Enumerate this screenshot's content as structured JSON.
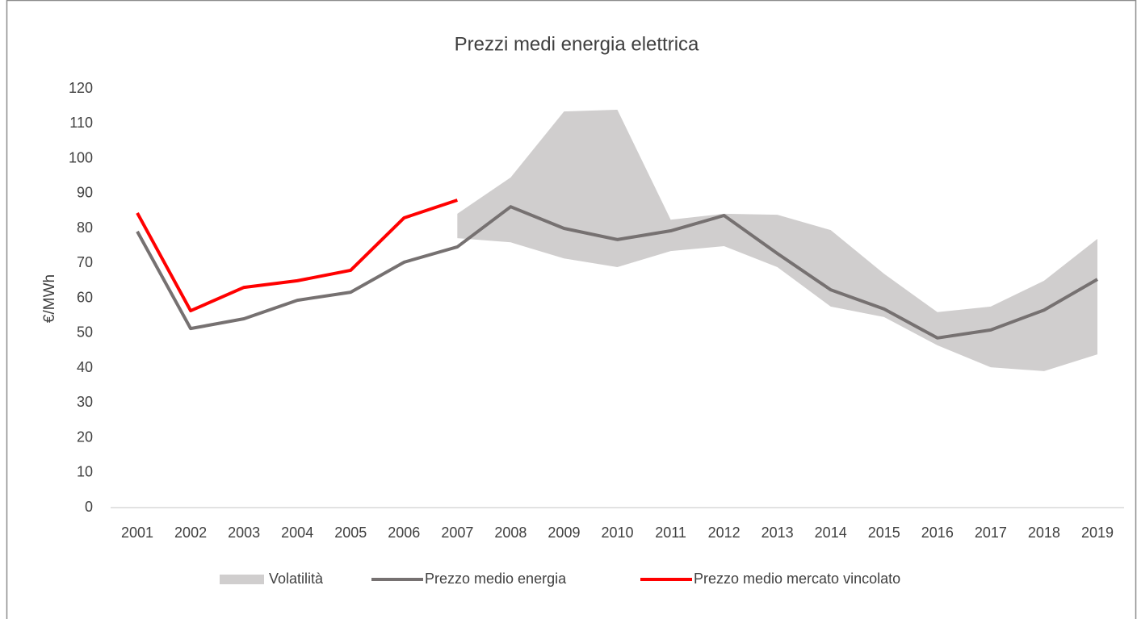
{
  "chart_data": {
    "type": "line",
    "title": "Prezzi medi energia elettrica",
    "y_label": "€/MWh",
    "categories": [
      "2001",
      "2002",
      "2003",
      "2004",
      "2005",
      "2006",
      "2007",
      "2008",
      "2009",
      "2010",
      "2011",
      "2012",
      "2013",
      "2014",
      "2015",
      "2016",
      "2017",
      "2018",
      "2019"
    ],
    "series": [
      {
        "name": "Volatilità",
        "color": "#d0cece",
        "type": "band",
        "low": [
          null,
          null,
          null,
          null,
          null,
          null,
          77.2,
          76,
          71.4,
          68.9,
          73.5,
          74.9,
          68.9,
          57.6,
          54.6,
          46.5,
          40.2,
          39.1,
          43.9
        ],
        "high": [
          null,
          null,
          null,
          null,
          null,
          null,
          84.2,
          94.6,
          113.5,
          114,
          82.5,
          84.2,
          83.9,
          79.5,
          67,
          56,
          57.6,
          65,
          77
        ]
      },
      {
        "name": "Prezzo medio energia",
        "color": "#767171",
        "values": [
          79.1,
          51.3,
          54.1,
          59.4,
          61.7,
          70.3,
          74.7,
          86.2,
          80,
          76.8,
          79.3,
          83.7,
          72.8,
          62.4,
          56.9,
          48.6,
          50.9,
          56.6,
          65.4
        ]
      },
      {
        "name": "Prezzo medio mercato vincolato",
        "color": "#ff0000",
        "values": [
          84.4,
          56.4,
          63.1,
          65,
          68,
          83,
          88.1,
          null,
          null,
          null,
          null,
          null,
          null,
          null,
          null,
          null,
          null,
          null,
          null
        ]
      }
    ],
    "ylim": [
      0,
      120
    ],
    "yticks": [
      0,
      10,
      20,
      30,
      40,
      50,
      60,
      70,
      80,
      90,
      100,
      110,
      120
    ],
    "grid": false,
    "legend": "bottom"
  }
}
